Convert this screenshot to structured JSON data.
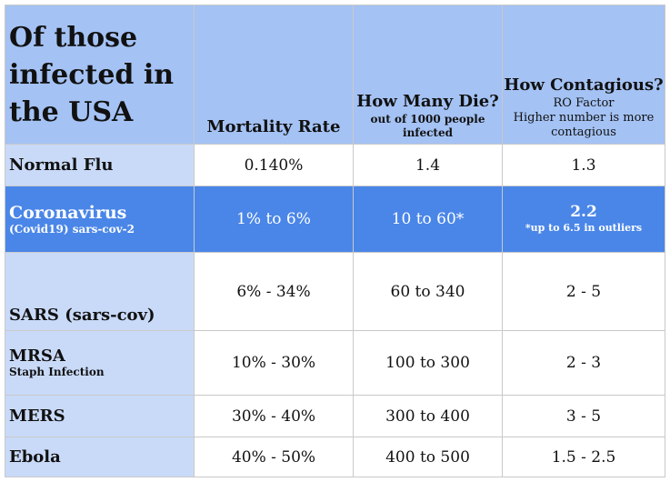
{
  "header": {
    "title": "Of those infected in the USA",
    "col1": {
      "main": "Mortality Rate"
    },
    "col2": {
      "main": "How Many Die?",
      "sub": "out of 1000 people infected"
    },
    "col3": {
      "main": "How Contagious?",
      "sub1": "RO Factor",
      "sub2": "Higher number is more contagious"
    }
  },
  "rows": [
    {
      "name": "Normal Flu",
      "sub": "",
      "mortality": "0.140%",
      "die": "1.4",
      "contagious": "1.3"
    },
    {
      "name": "Coronavirus",
      "sub": "(Covid19) sars-cov-2",
      "mortality": "1% to 6%",
      "die": "10 to 60*",
      "contagious": "2.2",
      "contagious_note": "*up to 6.5 in outliers"
    },
    {
      "name": "SARS (sars-cov)",
      "sub": "",
      "mortality": "6% - 34%",
      "die": "60 to 340",
      "contagious": "2 - 5"
    },
    {
      "name": "MRSA",
      "sub": "Staph Infection",
      "mortality": "10% - 30%",
      "die": "100 to 300",
      "contagious": "2 - 3"
    },
    {
      "name": "MERS",
      "sub": "",
      "mortality": "30% - 40%",
      "die": "300 to 400",
      "contagious": "3 - 5"
    },
    {
      "name": "Ebola",
      "sub": "",
      "mortality": "40% - 50%",
      "die": "400 to 500",
      "contagious": "1.5 - 2.5"
    }
  ],
  "colors": {
    "header": "#a4c2f4",
    "row_header": "#c9daf8",
    "highlight": "#4a86e8"
  }
}
